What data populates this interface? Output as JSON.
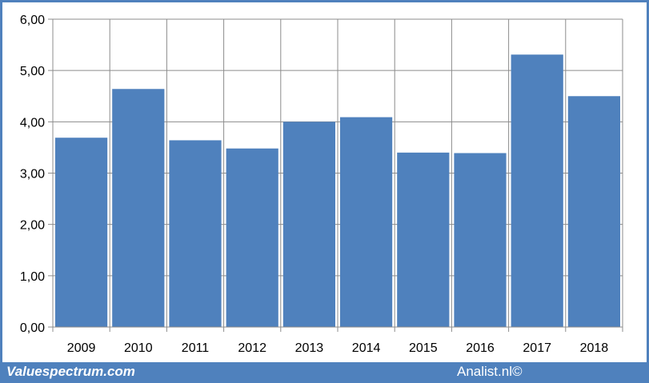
{
  "chart_data": {
    "type": "bar",
    "categories": [
      "2009",
      "2010",
      "2011",
      "2012",
      "2013",
      "2014",
      "2015",
      "2016",
      "2017",
      "2018"
    ],
    "values": [
      3.69,
      4.64,
      3.64,
      3.48,
      4.0,
      4.09,
      3.4,
      3.39,
      5.31,
      4.5
    ],
    "ylim": [
      0,
      6
    ],
    "yticks": [
      "0,00",
      "1,00",
      "2,00",
      "3,00",
      "4,00",
      "5,00",
      "6,00"
    ],
    "bar_color": "#4f81bd",
    "grid": true,
    "title": "",
    "xlabel": "",
    "ylabel": ""
  },
  "footer": {
    "left": "Valuespectrum.com",
    "right": "Analist.nl©"
  }
}
